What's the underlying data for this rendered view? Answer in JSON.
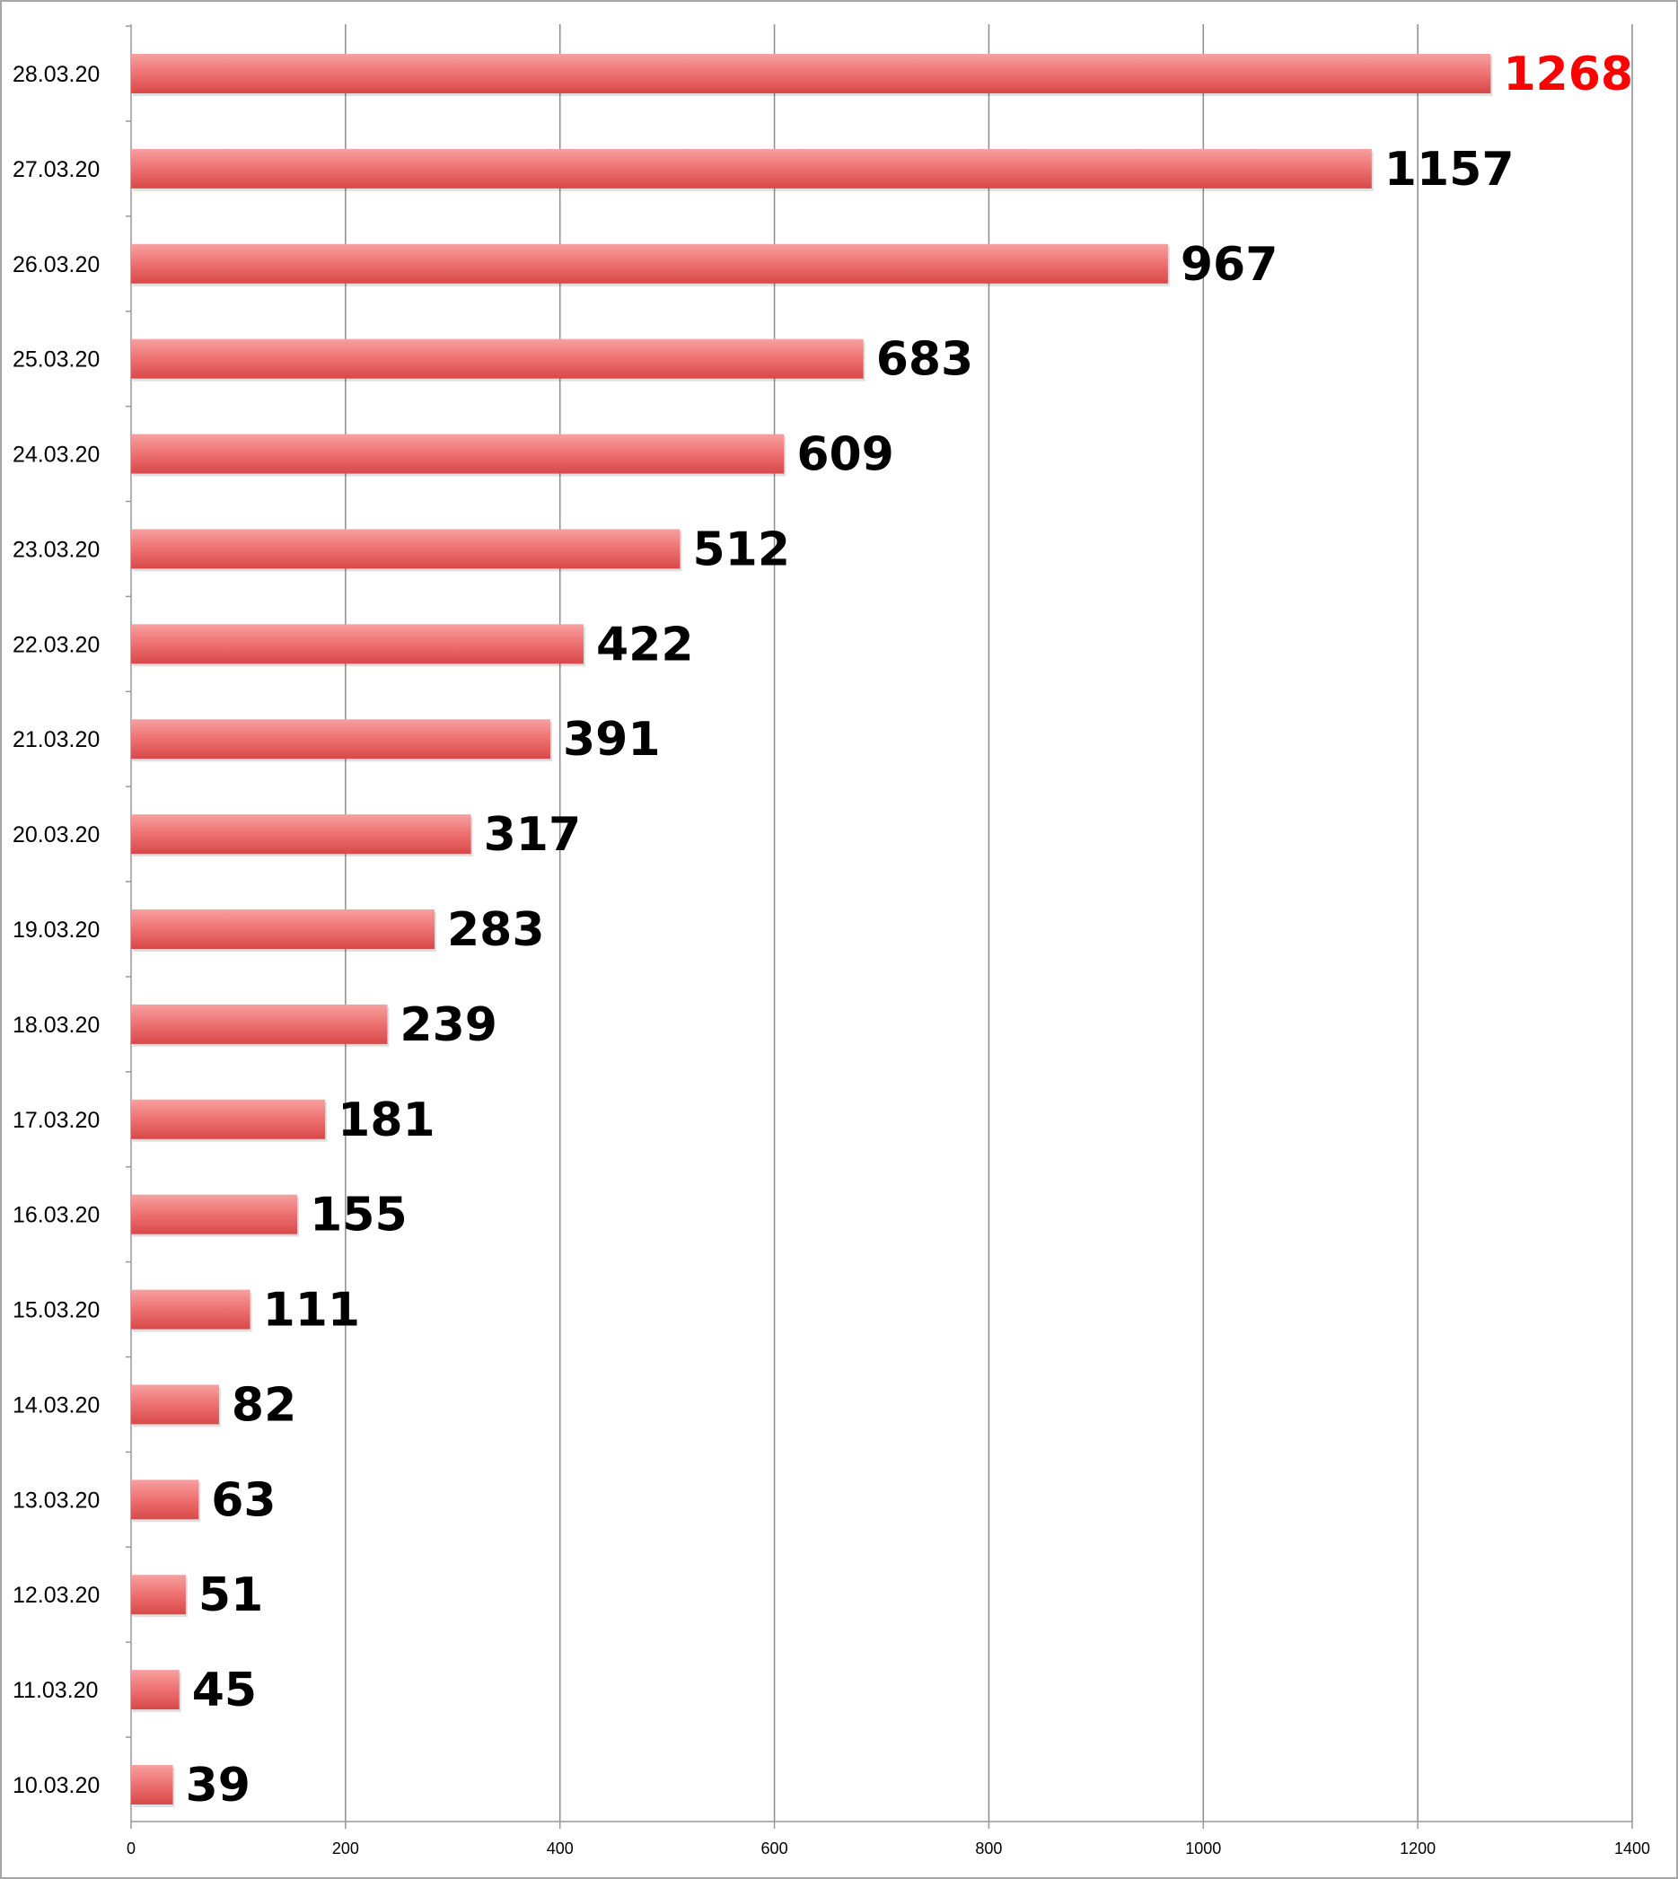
{
  "chart_data": {
    "type": "bar",
    "orientation": "horizontal",
    "categories": [
      "10.03.20",
      "11.03.20",
      "12.03.20",
      "13.03.20",
      "14.03.20",
      "15.03.20",
      "16.03.20",
      "17.03.20",
      "18.03.20",
      "19.03.20",
      "20.03.20",
      "21.03.20",
      "22.03.20",
      "23.03.20",
      "24.03.20",
      "25.03.20",
      "26.03.20",
      "27.03.20",
      "28.03.20"
    ],
    "values": [
      39,
      45,
      51,
      63,
      82,
      111,
      155,
      181,
      239,
      283,
      317,
      391,
      422,
      512,
      609,
      683,
      967,
      1157,
      1268
    ],
    "data_labels": [
      "39",
      "45",
      "51",
      "63",
      "82",
      "111",
      "155",
      "181",
      "239",
      "283",
      "317",
      "391",
      "422",
      "512",
      "609",
      "683",
      "967",
      "1157",
      "1268"
    ],
    "xlim": [
      0,
      1400
    ],
    "x_ticks": [
      "0",
      "200",
      "400",
      "600",
      "800",
      "1000",
      "1200",
      "1400"
    ],
    "category_order": "latest-on-top",
    "grid": "vertical",
    "legend": "none",
    "colors": {
      "bar_light": "#f7a0a0",
      "bar_mid": "#ef7575",
      "bar_dark": "#d94848",
      "label_default": "#000000",
      "label_highlight": "#ff0000",
      "grid": "#8c8c8c",
      "axis": "#999999",
      "frame": "#a6a6a6"
    },
    "highlighted_category": "28.03.20"
  }
}
